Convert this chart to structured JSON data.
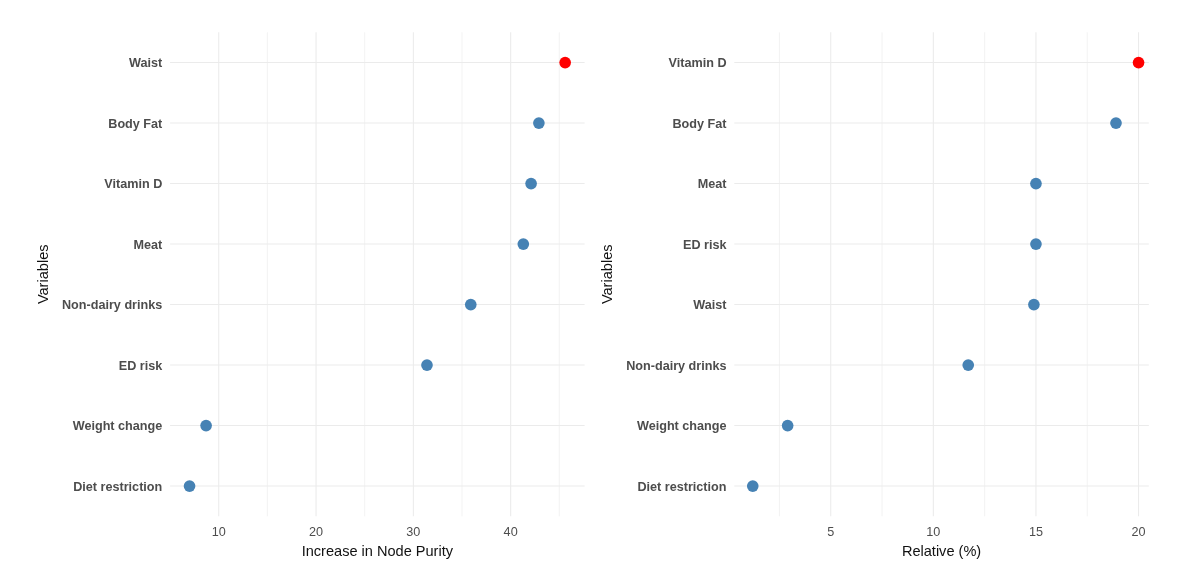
{
  "chart_data": [
    {
      "type": "scatter",
      "orientation": "horizontal",
      "marker": "circle",
      "grid": true,
      "xlabel": "Increase in Node Purity",
      "ylabel": "Variables",
      "categories": [
        "Waist",
        "Body Fat",
        "Vitamin D",
        "Meat",
        "Non-dairy drinks",
        "ED risk",
        "Weight change",
        "Diet restriction"
      ],
      "values": [
        45.6,
        42.9,
        42.1,
        41.3,
        35.9,
        31.4,
        8.7,
        7.0
      ],
      "colors": [
        "#ff0000",
        "#4682b4",
        "#4682b4",
        "#4682b4",
        "#4682b4",
        "#4682b4",
        "#4682b4",
        "#4682b4"
      ],
      "xlim": [
        5.0,
        47.6
      ],
      "xticks": [
        10,
        20,
        30,
        40,
        {
          "value": 15,
          "label": null
        },
        {
          "value": 25,
          "label": null
        },
        {
          "value": 35,
          "label": null
        },
        {
          "value": 45,
          "label": null
        }
      ]
    },
    {
      "type": "scatter",
      "orientation": "horizontal",
      "marker": "circle",
      "grid": true,
      "xlabel": "Relative (%)",
      "ylabel": "Variables",
      "categories": [
        "Vitamin D",
        "Body Fat",
        "Meat",
        "ED risk",
        "Waist",
        "Non-dairy drinks",
        "Weight change",
        "Diet restriction"
      ],
      "values": [
        20.0,
        18.9,
        15.0,
        15.0,
        14.9,
        11.7,
        2.9,
        1.2
      ],
      "colors": [
        "#ff0000",
        "#4682b4",
        "#4682b4",
        "#4682b4",
        "#4682b4",
        "#4682b4",
        "#4682b4",
        "#4682b4"
      ],
      "xlim": [
        0.3,
        20.5
      ],
      "xticks": [
        5,
        10,
        15,
        20,
        {
          "value": 2.5,
          "label": null
        },
        {
          "value": 7.5,
          "label": null
        },
        {
          "value": 12.5,
          "label": null
        },
        {
          "value": 17.5,
          "label": null
        }
      ]
    }
  ]
}
